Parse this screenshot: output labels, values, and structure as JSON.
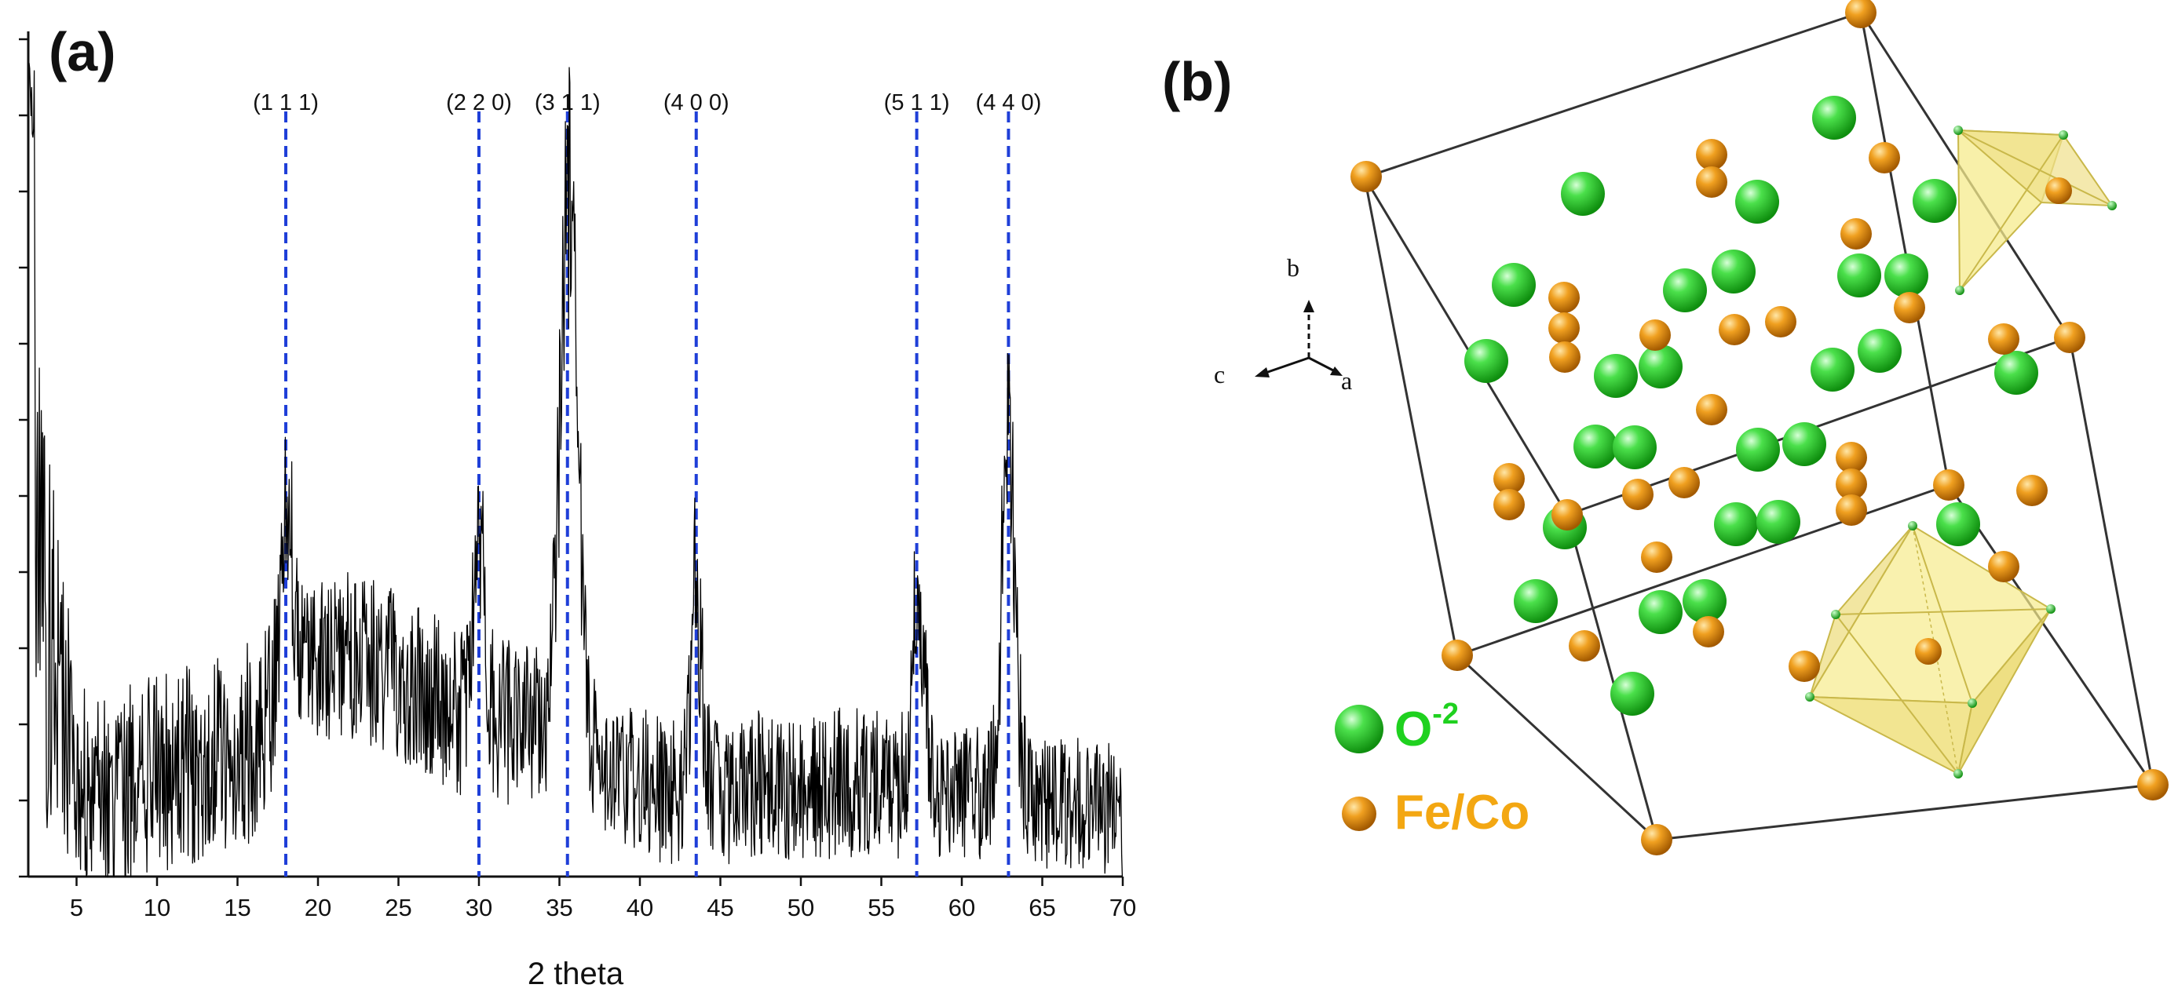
{
  "panel_a": {
    "label": "(a)",
    "chart_data": {
      "type": "line",
      "xlabel": "2 theta",
      "ylabel": "",
      "xlim": [
        2,
        70
      ],
      "ylim": [
        0,
        1
      ],
      "x_ticks": [
        5,
        10,
        15,
        20,
        25,
        30,
        35,
        40,
        45,
        50,
        55,
        60,
        65,
        70
      ],
      "y_tick_count": 12,
      "grid": false,
      "baseline_envelope": {
        "x": [
          2,
          3,
          5,
          7,
          10,
          13,
          16,
          17.5,
          19,
          22,
          25,
          28,
          30,
          32,
          33.5,
          36,
          38.5,
          41,
          45,
          48,
          52,
          55,
          60,
          65,
          70
        ],
        "mean": [
          0.55,
          0.3,
          0.12,
          0.1,
          0.12,
          0.14,
          0.16,
          0.22,
          0.26,
          0.26,
          0.24,
          0.2,
          0.19,
          0.18,
          0.18,
          0.16,
          0.13,
          0.1,
          0.1,
          0.11,
          0.11,
          0.11,
          0.1,
          0.09,
          0.08
        ],
        "noise": [
          0.3,
          0.25,
          0.12,
          0.12,
          0.12,
          0.12,
          0.12,
          0.11,
          0.1,
          0.1,
          0.1,
          0.1,
          0.1,
          0.1,
          0.1,
          0.09,
          0.09,
          0.09,
          0.09,
          0.09,
          0.09,
          0.09,
          0.08,
          0.08,
          0.08
        ]
      },
      "peaks": [
        {
          "hkl": "(1 1 1)",
          "two_theta": 18.0,
          "intensity": 0.21,
          "width": 0.5
        },
        {
          "hkl": "(2 2 0)",
          "two_theta": 30.0,
          "intensity": 0.2,
          "width": 0.5
        },
        {
          "hkl": "(3 1 1)",
          "two_theta": 35.6,
          "intensity": 0.68,
          "width": 0.75
        },
        {
          "hkl": "(4 0 0)",
          "two_theta": 43.5,
          "intensity": 0.24,
          "width": 0.5
        },
        {
          "hkl": "(5 1 1)",
          "two_theta": 57.3,
          "intensity": 0.22,
          "width": 0.5
        },
        {
          "hkl": "(4 4 0)",
          "two_theta": 62.9,
          "intensity": 0.38,
          "width": 0.6
        }
      ],
      "reference_lines": [
        {
          "label": "(1 1 1)",
          "x": 18.0
        },
        {
          "label": "(2 2 0)",
          "x": 30.0
        },
        {
          "label": "(3 1 1)",
          "x": 35.5
        },
        {
          "label": "(4 0 0)",
          "x": 43.5
        },
        {
          "label": "(5 1 1)",
          "x": 57.2
        },
        {
          "label": "(4 4 0)",
          "x": 62.9
        }
      ],
      "colors": {
        "line": "#000000",
        "reference": "#1f3fd8"
      }
    }
  },
  "panel_b": {
    "label": "(b)",
    "axes_labels": {
      "a": "a",
      "b": "b",
      "c": "c"
    },
    "legend": [
      {
        "name": "oxygen",
        "prefix": "O",
        "superscript": "-2",
        "color": "#1fd11f"
      },
      {
        "name": "metal",
        "text": "Fe/Co",
        "color": "#f3a712"
      }
    ],
    "colors": {
      "oxygen": "#2ecc2e",
      "metal": "#e8900f",
      "edge": "#333333",
      "polyhedron": "#f6eb8c"
    }
  }
}
